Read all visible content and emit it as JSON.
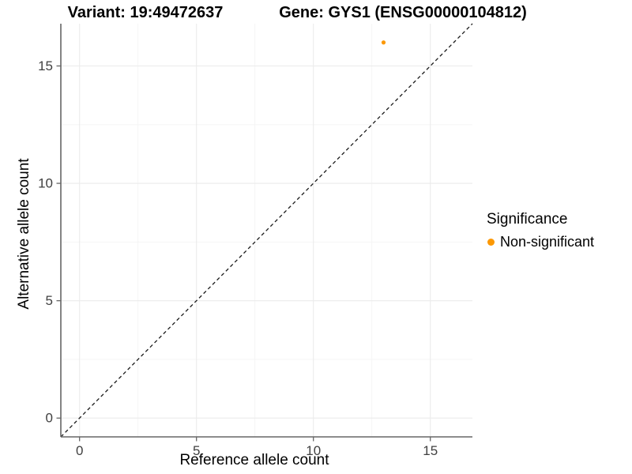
{
  "chart_data": {
    "type": "scatter",
    "titles": {
      "left": "Variant: 19:49472637",
      "right": "Gene: GYS1 (ENSG00000104812)"
    },
    "xlabel": "Reference allele count",
    "ylabel": "Alternative allele count",
    "xlim": [
      -0.8,
      16.8
    ],
    "ylim": [
      -0.8,
      16.8
    ],
    "xticks": [
      0,
      5,
      10,
      15
    ],
    "yticks": [
      0,
      5,
      10,
      15
    ],
    "xticks_minor": [
      2.5,
      7.5,
      12.5
    ],
    "yticks_minor": [
      2.5,
      7.5,
      12.5
    ],
    "grid": "major+minor",
    "points": [
      {
        "x": 13,
        "y": 16,
        "series": "Non-significant"
      }
    ],
    "abline": {
      "intercept": 0,
      "slope": 1,
      "style": "dashed"
    },
    "legend": {
      "title": "Significance",
      "position": "right",
      "items": [
        {
          "label": "Non-significant",
          "color": "#FC9803"
        }
      ]
    },
    "colors": {
      "point": "#FC9803",
      "grid_major": "#EBEBEB",
      "grid_minor": "#F4F4F4",
      "axis_line": "#666666",
      "tick_text": "#404040",
      "dashed_line": "#1A1A1A"
    }
  }
}
